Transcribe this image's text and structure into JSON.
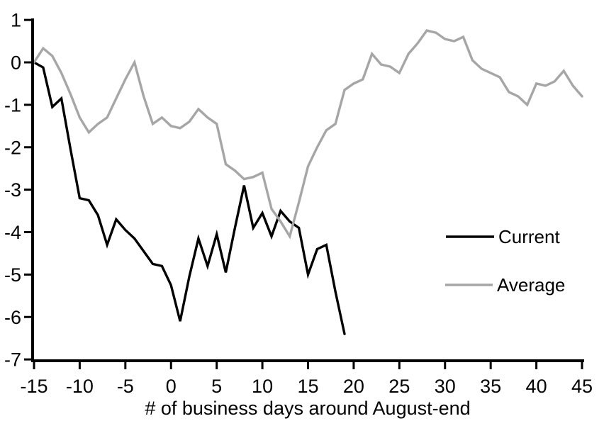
{
  "chart_data": {
    "type": "line",
    "title": "",
    "xlabel": "# of business days around August-end",
    "ylabel": "",
    "xlim": [
      -15,
      45
    ],
    "ylim": [
      -7,
      1
    ],
    "grid": false,
    "legend_position": "middle-right",
    "x_ticks": [
      -15,
      -10,
      -5,
      0,
      5,
      10,
      15,
      20,
      25,
      30,
      35,
      40,
      45
    ],
    "y_ticks": [
      1,
      0,
      -1,
      -2,
      -3,
      -4,
      -5,
      -6,
      -7
    ],
    "x_step": 1,
    "series": [
      {
        "name": "Current",
        "color": "#000000",
        "x_start": -15,
        "values": [
          0,
          -0.12,
          -1.05,
          -0.85,
          -2.05,
          -3.2,
          -3.25,
          -3.6,
          -4.3,
          -3.7,
          -3.95,
          -4.15,
          -4.45,
          -4.75,
          -4.8,
          -5.25,
          -6.1,
          -5.05,
          -4.15,
          -4.8,
          -4.05,
          -4.95,
          -3.9,
          -2.9,
          -3.9,
          -3.55,
          -4.1,
          -3.5,
          -3.75,
          -3.9,
          -5.0,
          -4.4,
          -4.3,
          -5.4,
          -6.4
        ]
      },
      {
        "name": "Average",
        "color": "#A6A6A6",
        "x_start": -15,
        "values": [
          0,
          0.33,
          0.15,
          -0.25,
          -0.75,
          -1.3,
          -1.65,
          -1.45,
          -1.3,
          -0.85,
          -0.4,
          0.0,
          -0.8,
          -1.45,
          -1.3,
          -1.5,
          -1.55,
          -1.4,
          -1.1,
          -1.3,
          -1.45,
          -2.4,
          -2.55,
          -2.75,
          -2.7,
          -2.6,
          -3.45,
          -3.75,
          -4.1,
          -3.3,
          -2.45,
          -2.0,
          -1.6,
          -1.45,
          -0.65,
          -0.5,
          -0.4,
          0.2,
          -0.05,
          -0.1,
          -0.25,
          0.2,
          0.45,
          0.75,
          0.7,
          0.55,
          0.5,
          0.6,
          0.05,
          -0.15,
          -0.25,
          -0.35,
          -0.7,
          -0.8,
          -1.0,
          -0.5,
          -0.55,
          -0.45,
          -0.2,
          -0.55,
          -0.8
        ]
      }
    ],
    "axis_color": "#000000"
  }
}
